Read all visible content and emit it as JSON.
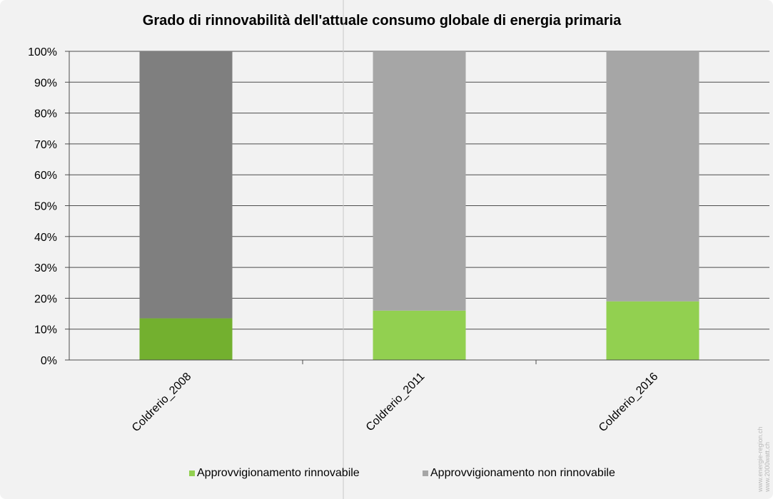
{
  "chart_data": {
    "type": "bar",
    "stacked": true,
    "title": "Grado di rinnovabilità dell'attuale consumo globale di energia primaria",
    "categories": [
      "Coldrerio_2008",
      "Coldrerio_2011",
      "Coldrerio_2016"
    ],
    "series": [
      {
        "name": "Approvvigionamento rinnovabile",
        "values": [
          13.5,
          16,
          19
        ],
        "colors": [
          "#73b02f",
          "#92d050",
          "#92d050"
        ]
      },
      {
        "name": "Approvvigionamento non rinnovabile",
        "values": [
          86.5,
          84,
          81
        ],
        "colors": [
          "#7f7f7f",
          "#a6a6a6",
          "#a6a6a6"
        ]
      }
    ],
    "ylim": [
      0,
      100
    ],
    "yticks": [
      "0%",
      "10%",
      "20%",
      "30%",
      "40%",
      "50%",
      "60%",
      "70%",
      "80%",
      "90%",
      "100%"
    ],
    "grid": true,
    "legend_position": "bottom",
    "legend_colors": [
      "#92d050",
      "#a6a6a6"
    ]
  },
  "watermark": [
    "www.energie-region.ch",
    "www.2000watt.ch"
  ]
}
